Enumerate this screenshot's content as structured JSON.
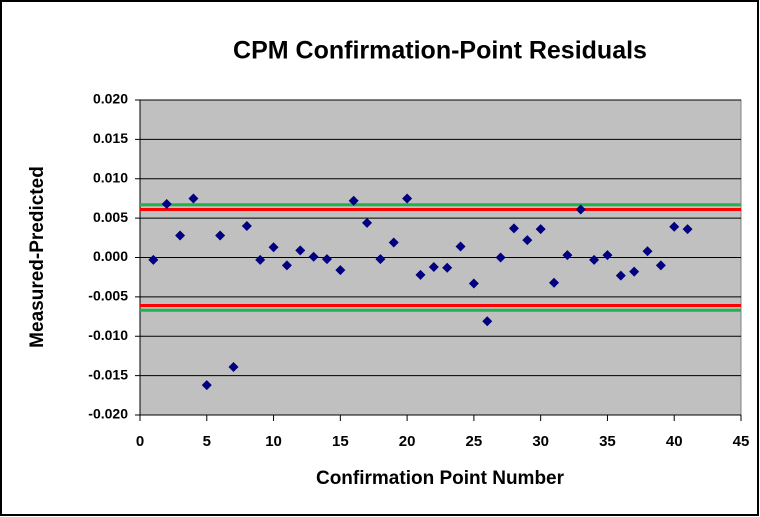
{
  "chart_data": {
    "type": "scatter",
    "title": "CPM Confirmation-Point Residuals",
    "x_label": "Confirmation Point Number",
    "y_label": "Measured-Predicted",
    "x": [
      1,
      2,
      3,
      4,
      5,
      6,
      7,
      8,
      9,
      10,
      11,
      12,
      13,
      14,
      15,
      16,
      17,
      18,
      19,
      20,
      21,
      22,
      23,
      24,
      25,
      26,
      27,
      28,
      29,
      30,
      31,
      32,
      33,
      34,
      35,
      36,
      37,
      38,
      39,
      40,
      41
    ],
    "values": [
      -0.0003,
      0.0068,
      0.0028,
      0.0075,
      -0.0162,
      0.0028,
      -0.0139,
      0.004,
      -0.0003,
      0.0013,
      -0.001,
      0.0009,
      0.0001,
      -0.0002,
      -0.0016,
      0.0072,
      0.0044,
      -0.0002,
      0.0019,
      0.0075,
      -0.0022,
      -0.0012,
      -0.0013,
      0.0014,
      -0.0033,
      -0.0081,
      0.0,
      0.0037,
      0.0022,
      0.0036,
      -0.0032,
      0.0003,
      0.0061,
      -0.0003,
      0.0003,
      -0.0023,
      -0.0018,
      0.0008,
      -0.001,
      0.0039,
      0.0036
    ],
    "color": "#000080",
    "reference_lines": [
      {
        "value": 0.0067,
        "color": "#22b14c"
      },
      {
        "value": 0.0061,
        "color": "#ff0000"
      },
      {
        "value": -0.0061,
        "color": "#ff0000"
      },
      {
        "value": -0.0067,
        "color": "#22b14c"
      }
    ],
    "xlim": [
      0,
      45
    ],
    "xticks": [
      0,
      5,
      10,
      15,
      20,
      25,
      30,
      35,
      40,
      45
    ],
    "ylim": [
      -0.02,
      0.02
    ],
    "yticks": [
      {
        "value": -0.02,
        "label": "-0.020"
      },
      {
        "value": -0.015,
        "label": "-0.015"
      },
      {
        "value": -0.01,
        "label": "-0.010"
      },
      {
        "value": -0.005,
        "label": "-0.005"
      },
      {
        "value": 0,
        "label": "0.000"
      },
      {
        "value": 0.005,
        "label": "0.005"
      },
      {
        "value": 0.01,
        "label": "0.010"
      },
      {
        "value": 0.015,
        "label": "0.015"
      },
      {
        "value": 0.02,
        "label": "0.020"
      }
    ],
    "grid": true,
    "plot_background": "#c0c0c0"
  }
}
